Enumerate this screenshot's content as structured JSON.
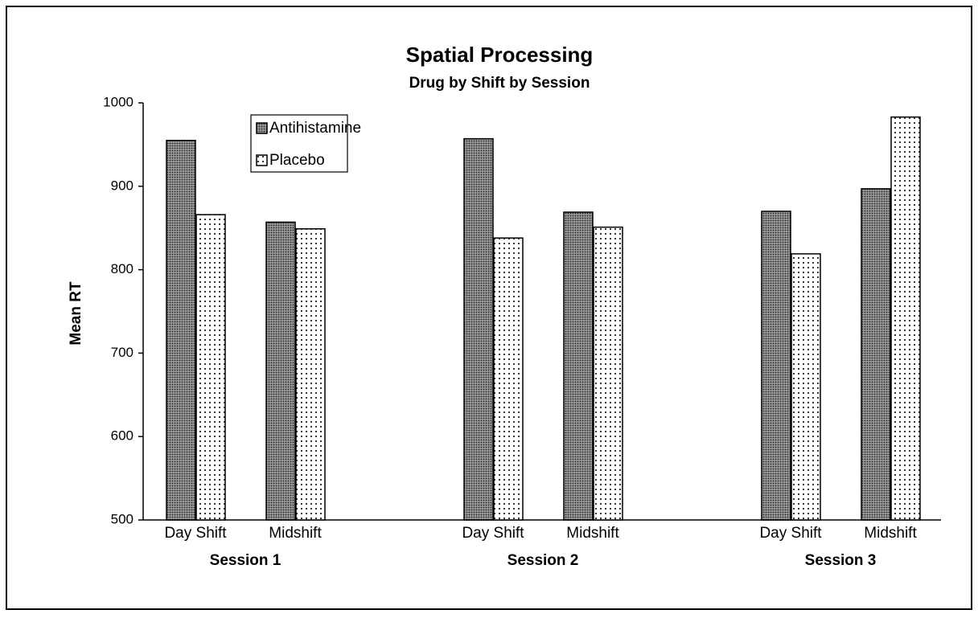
{
  "chart_data": {
    "type": "bar",
    "title": "Spatial Processing",
    "subtitle": "Drug by Shift by Session",
    "y_label": "Mean RT",
    "groups": [
      "Session 1",
      "Session 2",
      "Session 3"
    ],
    "categories": [
      "Day Shift",
      "Midshift",
      "Day Shift",
      "Midshift",
      "Day Shift",
      "Midshift"
    ],
    "series": [
      {
        "name": "Antihistamine",
        "color": "#9a9a9a",
        "values": [
          955,
          857,
          957,
          869,
          870,
          897
        ]
      },
      {
        "name": "Placebo",
        "color": "#ffffff",
        "values": [
          866,
          849,
          838,
          851,
          819,
          983
        ]
      }
    ],
    "ylim": [
      500,
      1000
    ],
    "yticks": [
      500,
      600,
      700,
      800,
      900,
      1000
    ],
    "legend": "upper-left"
  }
}
